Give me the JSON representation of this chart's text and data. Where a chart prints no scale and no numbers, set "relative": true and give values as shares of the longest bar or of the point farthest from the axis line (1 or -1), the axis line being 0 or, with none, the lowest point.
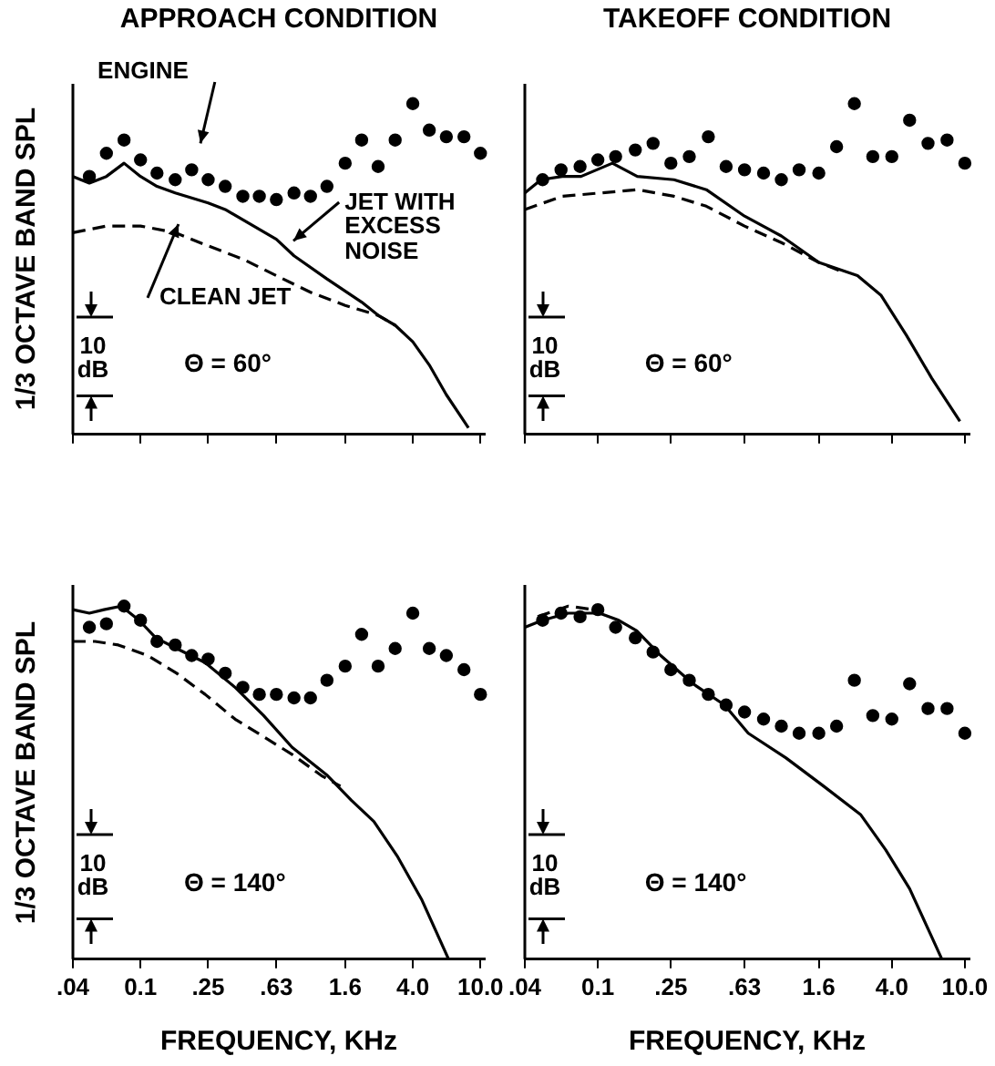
{
  "chart_data": [
    {
      "type": "line",
      "title": "APPROACH CONDITION",
      "ylabel": "1/3 OCTAVE BAND SPL",
      "relative": true,
      "log": "x",
      "xlim": [
        0.04,
        10.6
      ],
      "xticks": [
        {
          "value": 0.04,
          "label": null
        },
        {
          "value": 0.1,
          "label": null
        },
        {
          "value": 0.25,
          "label": null
        },
        {
          "value": 0.63,
          "label": null
        },
        {
          "value": 1.6,
          "label": null
        },
        {
          "value": 4,
          "label": null
        },
        {
          "value": 10,
          "label": null
        }
      ],
      "tick_labels": false,
      "annotations": [
        "Θ = 60°",
        "10 dB"
      ],
      "series": [
        {
          "name": "ENGINE",
          "type": "scatter",
          "marker": "circle",
          "color": "#000000",
          "x": [
            0.05,
            0.063,
            0.08,
            0.1,
            0.125,
            0.16,
            0.2,
            0.25,
            0.315,
            0.4,
            0.5,
            0.63,
            0.8,
            1,
            1.25,
            1.6,
            2,
            2.5,
            3.15,
            4,
            5,
            6.3,
            8,
            10
          ],
          "values": [
            0.78,
            0.85,
            0.89,
            0.83,
            0.79,
            0.77,
            0.8,
            0.77,
            0.75,
            0.72,
            0.72,
            0.71,
            0.73,
            0.72,
            0.75,
            0.82,
            0.89,
            0.81,
            0.89,
            1,
            0.92,
            0.9,
            0.9,
            0.85
          ]
        },
        {
          "name": "JET WITH EXCESS NOISE",
          "type": "line",
          "marker": "none",
          "line_style": "solid",
          "color": "#000000",
          "x": [
            0.04,
            0.05,
            0.063,
            0.08,
            0.1,
            0.125,
            0.16,
            0.25,
            0.315,
            0.63,
            0.8,
            1.25,
            2,
            2.5,
            3.15,
            4,
            5,
            6.3,
            8.5
          ],
          "values": [
            0.78,
            0.76,
            0.78,
            0.82,
            0.78,
            0.75,
            0.73,
            0.7,
            0.68,
            0.59,
            0.54,
            0.47,
            0.4,
            0.36,
            0.33,
            0.28,
            0.21,
            0.12,
            0.02
          ]
        },
        {
          "name": "CLEAN JET",
          "type": "line",
          "marker": "none",
          "line_style": "dashed",
          "color": "#000000",
          "x": [
            0.04,
            0.063,
            0.1,
            0.16,
            0.25,
            0.4,
            0.63,
            1,
            1.6,
            2.5,
            3.15
          ],
          "values": [
            0.61,
            0.63,
            0.63,
            0.61,
            0.57,
            0.53,
            0.48,
            0.43,
            0.39,
            0.36,
            0.33
          ]
        }
      ]
    },
    {
      "type": "line",
      "title": "TAKEOFF CONDITION",
      "relative": true,
      "log": "x",
      "xlim": [
        0.04,
        10.6
      ],
      "xticks": [
        {
          "value": 0.04,
          "label": null
        },
        {
          "value": 0.1,
          "label": null
        },
        {
          "value": 0.25,
          "label": null
        },
        {
          "value": 0.63,
          "label": null
        },
        {
          "value": 1.6,
          "label": null
        },
        {
          "value": 4,
          "label": null
        },
        {
          "value": 10,
          "label": null
        }
      ],
      "tick_labels": false,
      "annotations": [
        "Θ = 60°",
        "10 dB"
      ],
      "series": [
        {
          "type": "scatter",
          "marker": "circle",
          "color": "#000000",
          "x": [
            0.05,
            0.063,
            0.08,
            0.1,
            0.125,
            0.16,
            0.2,
            0.25,
            0.315,
            0.4,
            0.5,
            0.63,
            0.8,
            1,
            1.25,
            1.6,
            2,
            2.5,
            3.15,
            4,
            5,
            6.3,
            8,
            10
          ],
          "values": [
            0.77,
            0.8,
            0.81,
            0.83,
            0.84,
            0.86,
            0.88,
            0.82,
            0.84,
            0.9,
            0.81,
            0.8,
            0.79,
            0.77,
            0.8,
            0.79,
            0.87,
            1,
            0.84,
            0.84,
            0.95,
            0.88,
            0.89,
            0.82
          ]
        },
        {
          "type": "line",
          "marker": "none",
          "line_style": "solid",
          "color": "#000000",
          "x": [
            0.04,
            0.049,
            0.064,
            0.081,
            0.12,
            0.164,
            0.26,
            0.39,
            0.63,
            1,
            1.6,
            2.6,
            3.5,
            4.8,
            6.6,
            9.4
          ],
          "values": [
            0.73,
            0.77,
            0.78,
            0.78,
            0.82,
            0.78,
            0.77,
            0.74,
            0.66,
            0.6,
            0.52,
            0.48,
            0.42,
            0.3,
            0.17,
            0.04
          ]
        },
        {
          "type": "line",
          "marker": "none",
          "line_style": "dashed",
          "color": "#000000",
          "x": [
            0.04,
            0.064,
            0.103,
            0.164,
            0.26,
            0.39,
            0.63,
            1,
            1.6,
            2.2
          ],
          "values": [
            0.68,
            0.72,
            0.73,
            0.74,
            0.72,
            0.69,
            0.63,
            0.58,
            0.52,
            0.49
          ]
        }
      ]
    },
    {
      "type": "line",
      "ylabel": "1/3 OCTAVE BAND SPL",
      "xlabel": "FREQUENCY, KHz",
      "relative": true,
      "log": "x",
      "xlim": [
        0.04,
        10.6
      ],
      "xticks": [
        {
          "value": 0.04,
          "label": ".04"
        },
        {
          "value": 0.1,
          "label": "0.1"
        },
        {
          "value": 0.25,
          "label": ".25"
        },
        {
          "value": 0.63,
          "label": ".63"
        },
        {
          "value": 1.6,
          "label": "1.6"
        },
        {
          "value": 4,
          "label": "4.0"
        },
        {
          "value": 10,
          "label": "10.0"
        }
      ],
      "tick_labels": "x",
      "annotations": [
        "Θ = 140°",
        "10 dB"
      ],
      "series": [
        {
          "type": "scatter",
          "marker": "circle",
          "color": "#000000",
          "x": [
            0.05,
            0.063,
            0.08,
            0.1,
            0.125,
            0.16,
            0.2,
            0.25,
            0.315,
            0.4,
            0.5,
            0.63,
            0.8,
            1,
            1.25,
            1.6,
            2,
            2.5,
            3.15,
            4,
            5,
            6.3,
            8,
            10
          ],
          "values": [
            0.94,
            0.95,
            1,
            0.96,
            0.9,
            0.89,
            0.86,
            0.85,
            0.81,
            0.77,
            0.75,
            0.75,
            0.74,
            0.74,
            0.79,
            0.83,
            0.92,
            0.83,
            0.88,
            0.98,
            0.88,
            0.86,
            0.82,
            0.75
          ]
        },
        {
          "type": "line",
          "marker": "none",
          "line_style": "solid",
          "color": "#000000",
          "x": [
            0.04,
            0.05,
            0.061,
            0.077,
            0.098,
            0.123,
            0.163,
            0.24,
            0.36,
            0.53,
            0.78,
            1.26,
            1.74,
            2.36,
            3.26,
            4.5,
            6.5
          ],
          "values": [
            0.99,
            0.98,
            0.99,
            1,
            0.96,
            0.91,
            0.88,
            0.84,
            0.77,
            0.69,
            0.6,
            0.52,
            0.45,
            0.39,
            0.29,
            0.17,
            0
          ]
        },
        {
          "type": "line",
          "marker": "none",
          "line_style": "dashed",
          "color": "#000000",
          "x": [
            0.04,
            0.054,
            0.074,
            0.11,
            0.163,
            0.24,
            0.36,
            0.53,
            0.78,
            1.16,
            1.5
          ],
          "values": [
            0.9,
            0.9,
            0.89,
            0.86,
            0.81,
            0.75,
            0.68,
            0.63,
            0.58,
            0.52,
            0.49
          ]
        }
      ]
    },
    {
      "type": "line",
      "xlabel": "FREQUENCY, KHz",
      "relative": true,
      "log": "x",
      "xlim": [
        0.04,
        10.6
      ],
      "xticks": [
        {
          "value": 0.04,
          "label": ".04"
        },
        {
          "value": 0.1,
          "label": "0.1"
        },
        {
          "value": 0.25,
          "label": ".25"
        },
        {
          "value": 0.63,
          "label": ".63"
        },
        {
          "value": 1.6,
          "label": "1.6"
        },
        {
          "value": 4,
          "label": "4.0"
        },
        {
          "value": 10,
          "label": "10.0"
        }
      ],
      "tick_labels": "x",
      "annotations": [
        "Θ = 140°",
        "10 dB"
      ],
      "series": [
        {
          "type": "scatter",
          "marker": "circle",
          "color": "#000000",
          "x": [
            0.05,
            0.063,
            0.08,
            0.1,
            0.125,
            0.16,
            0.2,
            0.25,
            0.315,
            0.4,
            0.5,
            0.63,
            0.8,
            1,
            1.25,
            1.6,
            2,
            2.5,
            3.15,
            4,
            5,
            6.3,
            8,
            10
          ],
          "values": [
            0.96,
            0.98,
            0.97,
            0.99,
            0.94,
            0.91,
            0.87,
            0.82,
            0.79,
            0.75,
            0.72,
            0.7,
            0.68,
            0.66,
            0.64,
            0.64,
            0.66,
            0.79,
            0.69,
            0.68,
            0.78,
            0.71,
            0.71,
            0.64
          ]
        },
        {
          "type": "line",
          "marker": "none",
          "line_style": "solid",
          "color": "#000000",
          "x": [
            0.04,
            0.05,
            0.069,
            0.102,
            0.13,
            0.163,
            0.22,
            0.33,
            0.49,
            0.66,
            1.06,
            1.7,
            2.7,
            3.7,
            5,
            7.5
          ],
          "values": [
            0.94,
            0.96,
            0.98,
            0.98,
            0.96,
            0.93,
            0.86,
            0.78,
            0.72,
            0.64,
            0.57,
            0.49,
            0.41,
            0.31,
            0.2,
            0
          ]
        },
        {
          "type": "line",
          "marker": "none",
          "line_style": "dashed",
          "color": "#000000",
          "x": [
            0.047,
            0.069,
            0.094
          ],
          "values": [
            0.97,
            1,
            0.99
          ]
        }
      ]
    }
  ]
}
